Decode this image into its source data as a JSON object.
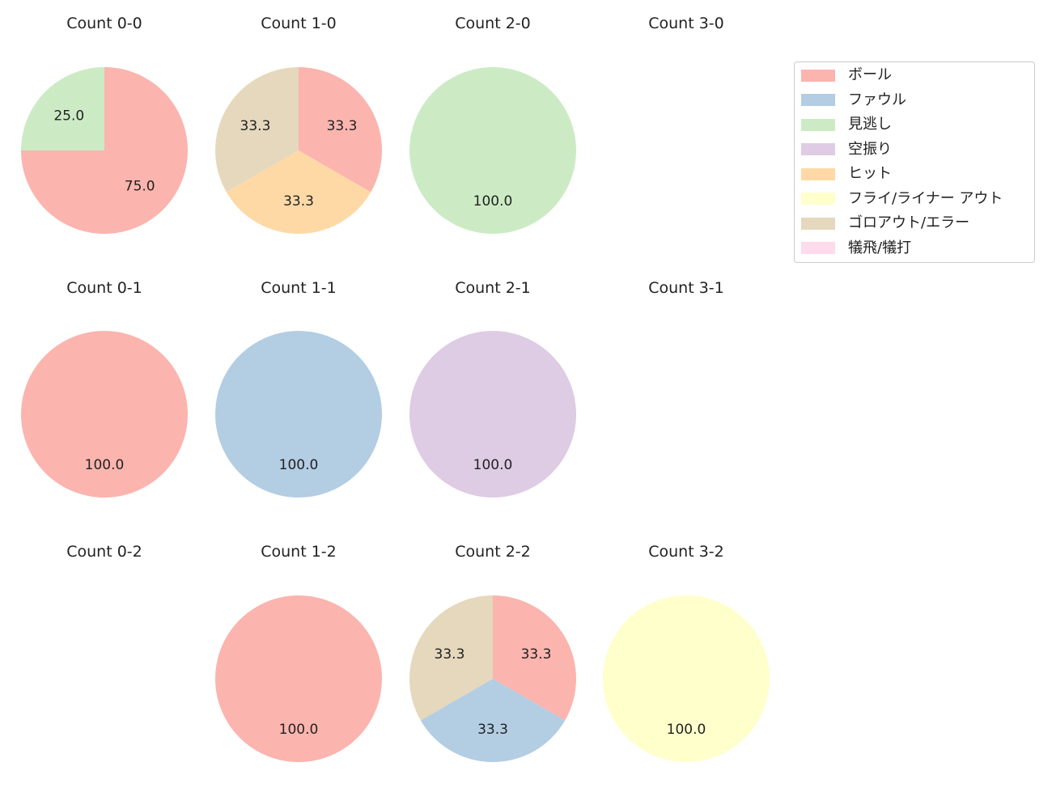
{
  "chart_data": {
    "type": "pie",
    "layout": {
      "rows": 3,
      "cols": 4,
      "legend_position": "upper right"
    },
    "legend": [
      {
        "label": "ボール",
        "color": "#fbb4ae"
      },
      {
        "label": "ファウル",
        "color": "#b3cde3"
      },
      {
        "label": "見逃し",
        "color": "#ccebc5"
      },
      {
        "label": "空振り",
        "color": "#decbe4"
      },
      {
        "label": "ヒット",
        "color": "#fed9a6"
      },
      {
        "label": "フライ/ライナー アウト",
        "color": "#ffffcc"
      },
      {
        "label": "ゴロアウト/エラー",
        "color": "#e5d8bd"
      },
      {
        "label": "犠飛/犠打",
        "color": "#fddaec"
      }
    ],
    "charts": [
      {
        "title": "Count 0-0",
        "row": 0,
        "col": 0,
        "slices": [
          {
            "label": "ボール",
            "value": 75.0
          },
          {
            "label": "見逃し",
            "value": 25.0
          }
        ]
      },
      {
        "title": "Count 1-0",
        "row": 0,
        "col": 1,
        "slices": [
          {
            "label": "ボール",
            "value": 33.3
          },
          {
            "label": "ヒット",
            "value": 33.3
          },
          {
            "label": "ゴロアウト/エラー",
            "value": 33.3
          }
        ]
      },
      {
        "title": "Count 2-0",
        "row": 0,
        "col": 2,
        "slices": [
          {
            "label": "見逃し",
            "value": 100.0
          }
        ]
      },
      {
        "title": "Count 3-0",
        "row": 0,
        "col": 3,
        "slices": []
      },
      {
        "title": "Count 0-1",
        "row": 1,
        "col": 0,
        "slices": [
          {
            "label": "ボール",
            "value": 100.0
          }
        ]
      },
      {
        "title": "Count 1-1",
        "row": 1,
        "col": 1,
        "slices": [
          {
            "label": "ファウル",
            "value": 100.0
          }
        ]
      },
      {
        "title": "Count 2-1",
        "row": 1,
        "col": 2,
        "slices": [
          {
            "label": "空振り",
            "value": 100.0
          }
        ]
      },
      {
        "title": "Count 3-1",
        "row": 1,
        "col": 3,
        "slices": []
      },
      {
        "title": "Count 0-2",
        "row": 2,
        "col": 0,
        "slices": []
      },
      {
        "title": "Count 1-2",
        "row": 2,
        "col": 1,
        "slices": [
          {
            "label": "ボール",
            "value": 100.0
          }
        ]
      },
      {
        "title": "Count 2-2",
        "row": 2,
        "col": 2,
        "slices": [
          {
            "label": "ボール",
            "value": 33.3
          },
          {
            "label": "ファウル",
            "value": 33.3
          },
          {
            "label": "ゴロアウト/エラー",
            "value": 33.3
          }
        ]
      },
      {
        "title": "Count 3-2",
        "row": 2,
        "col": 3,
        "slices": [
          {
            "label": "フライ/ライナー アウト",
            "value": 100.0
          }
        ]
      }
    ]
  }
}
